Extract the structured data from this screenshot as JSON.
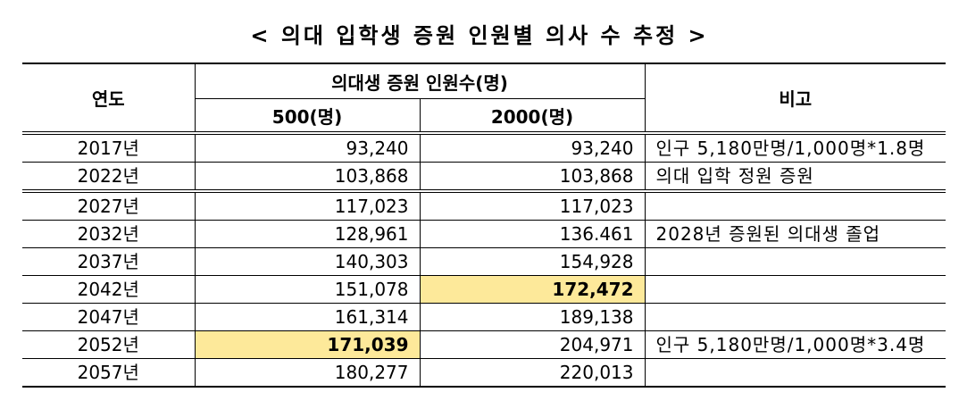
{
  "title": "< 의대 입학생 증원 인원별 의사 수 추정 >",
  "headers": {
    "year": "연도",
    "group": "의대생 증원 인원수(명)",
    "col_500": "500(명)",
    "col_2000": "2000(명)",
    "note": "비고"
  },
  "rows": [
    {
      "year": "2017년",
      "v500": "93,240",
      "v2000": "93,240",
      "note": "인구 5,180만명/1,000명*1.8명"
    },
    {
      "year": "2022년",
      "v500": "103,868",
      "v2000": "103,868",
      "note": "의대 입학 정원 증원"
    },
    {
      "year": "2027년",
      "v500": "117,023",
      "v2000": "117,023",
      "note": ""
    },
    {
      "year": "2032년",
      "v500": "128,961",
      "v2000": "136.461",
      "note": "2028년 증원된 의대생 졸업"
    },
    {
      "year": "2037년",
      "v500": "140,303",
      "v2000": "154,928",
      "note": ""
    },
    {
      "year": "2042년",
      "v500": "151,078",
      "v2000": "172,472",
      "note": ""
    },
    {
      "year": "2047년",
      "v500": "161,314",
      "v2000": "189,138",
      "note": ""
    },
    {
      "year": "2052년",
      "v500": "171,039",
      "v2000": "204,971",
      "note": "인구 5,180만명/1,000명*3.4명"
    },
    {
      "year": "2057년",
      "v500": "180,277",
      "v2000": "220,013",
      "note": ""
    }
  ],
  "colors": {
    "highlight": "#fde99a"
  }
}
